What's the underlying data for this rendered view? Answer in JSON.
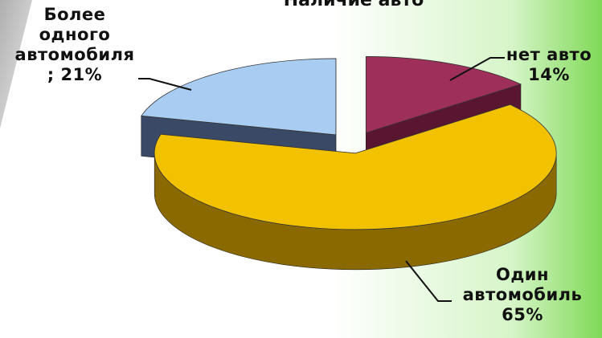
{
  "colors": {
    "background": "#ffffff",
    "accent_green": "#8ee06a",
    "slice_no_car": "#9e2f5a",
    "slice_one_car": "#f2c200",
    "slice_more_than_one": "#a9cdf2"
  },
  "chart_data": {
    "type": "pie",
    "title": "Наличие авто",
    "categories": [
      "нет авто",
      "Один автомобиль",
      "Более одного автомобиля"
    ],
    "values": [
      14,
      65,
      21
    ],
    "unit": "%",
    "three_d": true,
    "exploded": true,
    "legend": "none",
    "labels": [
      {
        "lines": [
          "нет авто",
          "14%"
        ]
      },
      {
        "lines": [
          "Один",
          "автомобиль",
          "65%"
        ]
      },
      {
        "lines": [
          "Более",
          "одного",
          "автомобиля",
          "; 21%"
        ]
      }
    ]
  }
}
